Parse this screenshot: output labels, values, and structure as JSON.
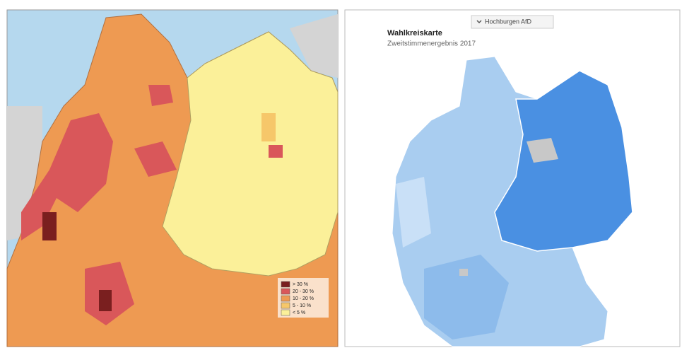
{
  "left_map": {
    "legend": [
      {
        "label": "> 30 %",
        "color": "#7a1f1f"
      },
      {
        "label": "20 - 30 %",
        "color": "#d9575a"
      },
      {
        "label": "10 - 20 %",
        "color": "#ee9a52"
      },
      {
        "label": "5 - 10 %",
        "color": "#f6c76a"
      },
      {
        "label": "< 5 %",
        "color": "#fbf099"
      }
    ]
  },
  "right_map": {
    "dropdown": "Hochburgen AfD",
    "title": "Wahlkreiskarte",
    "subtitle": "Zweitstimmenergebnis 2017"
  }
}
